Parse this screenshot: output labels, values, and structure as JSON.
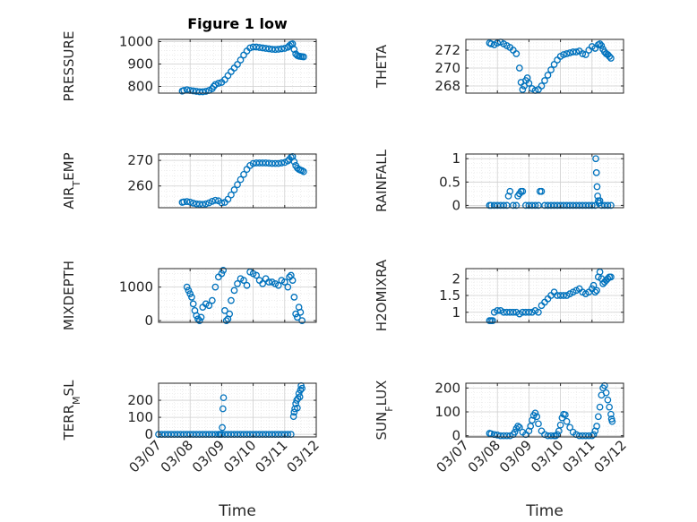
{
  "figure": {
    "title": "Figure 1 low",
    "xlabel": "Time"
  },
  "colors": {
    "marker": "#0072BD",
    "grid_major": "#cfcfcf",
    "grid_minor": "#e6e6e6",
    "axis": "#262626",
    "text": "#262626"
  },
  "x_ticks": [
    "03/07",
    "03/08",
    "03/09",
    "03/10",
    "03/11",
    "03/12"
  ],
  "chart_data": [
    {
      "type": "scatter",
      "ylabel": "PRESSURE",
      "ylim": [
        770,
        1010
      ],
      "yticks": [
        800,
        900,
        1000
      ],
      "ytick_labels": [
        "800",
        "900",
        "1000"
      ],
      "series": [
        {
          "x": [
            7.75,
            7.8,
            7.9,
            8.0,
            8.1,
            8.2,
            8.3,
            8.4,
            8.5,
            8.6,
            8.7,
            8.75,
            8.8,
            8.9,
            9.0,
            9.1,
            9.2,
            9.3,
            9.4,
            9.5,
            9.6,
            9.7,
            9.8,
            9.9,
            10.0,
            10.1,
            10.2,
            10.3,
            10.4,
            10.5,
            10.6,
            10.7,
            10.8,
            10.9,
            11.0,
            11.1,
            11.15,
            11.2,
            11.25,
            11.3,
            11.35,
            11.4,
            11.45,
            11.5,
            11.55,
            11.6
          ],
          "y": [
            779,
            782,
            785,
            782,
            780,
            778,
            776,
            776,
            778,
            782,
            790,
            800,
            808,
            814,
            818,
            830,
            848,
            866,
            882,
            898,
            918,
            940,
            958,
            972,
            976,
            976,
            974,
            972,
            970,
            968,
            966,
            965,
            966,
            968,
            970,
            975,
            982,
            988,
            990,
            965,
            945,
            938,
            935,
            934,
            933,
            932
          ]
        }
      ]
    },
    {
      "type": "scatter",
      "ylabel": "THETA",
      "ylim": [
        267.2,
        273.2
      ],
      "yticks": [
        268,
        270,
        272
      ],
      "ytick_labels": [
        "268",
        "270",
        "272"
      ],
      "series": [
        {
          "x": [
            7.75,
            7.8,
            7.9,
            8.0,
            8.1,
            8.2,
            8.3,
            8.4,
            8.5,
            8.6,
            8.7,
            8.75,
            8.8,
            8.85,
            8.9,
            8.95,
            9.0,
            9.1,
            9.2,
            9.3,
            9.4,
            9.5,
            9.6,
            9.7,
            9.8,
            9.9,
            10.0,
            10.1,
            10.2,
            10.3,
            10.4,
            10.5,
            10.6,
            10.7,
            10.8,
            10.9,
            11.0,
            11.1,
            11.2,
            11.25,
            11.3,
            11.35,
            11.4,
            11.45,
            11.5,
            11.55,
            11.6
          ],
          "y": [
            272.8,
            272.7,
            272.6,
            272.8,
            272.9,
            272.7,
            272.5,
            272.3,
            272.0,
            271.6,
            270.0,
            268.4,
            267.6,
            268.0,
            268.6,
            268.9,
            268.3,
            267.7,
            267.5,
            267.6,
            268.0,
            268.6,
            269.2,
            269.8,
            270.4,
            270.9,
            271.3,
            271.5,
            271.6,
            271.7,
            271.8,
            271.8,
            271.9,
            271.6,
            271.5,
            272.0,
            272.4,
            272.2,
            272.6,
            272.7,
            272.5,
            272.1,
            271.8,
            271.6,
            271.5,
            271.3,
            271.1
          ]
        }
      ]
    },
    {
      "type": "scatter",
      "ylabel": "AIR_TEMP",
      "ylim": [
        251.5,
        272.5
      ],
      "yticks": [
        260,
        270
      ],
      "ytick_labels": [
        "260",
        "270"
      ],
      "series": [
        {
          "x": [
            7.75,
            7.8,
            7.9,
            8.0,
            8.1,
            8.2,
            8.3,
            8.4,
            8.5,
            8.6,
            8.7,
            8.8,
            8.9,
            9.0,
            9.1,
            9.2,
            9.3,
            9.4,
            9.5,
            9.6,
            9.7,
            9.8,
            9.9,
            10.0,
            10.1,
            10.2,
            10.3,
            10.4,
            10.5,
            10.6,
            10.7,
            10.8,
            10.9,
            11.0,
            11.1,
            11.15,
            11.2,
            11.25,
            11.3,
            11.35,
            11.4,
            11.45,
            11.5,
            11.55,
            11.6
          ],
          "y": [
            253.6,
            253.8,
            253.9,
            253.7,
            253.3,
            253.0,
            252.9,
            252.8,
            253.0,
            253.4,
            254.0,
            254.4,
            254.2,
            253.4,
            253.6,
            254.8,
            256.5,
            258.5,
            260.5,
            262.5,
            264.5,
            266.5,
            268.0,
            268.8,
            269.0,
            269.0,
            269.0,
            269.0,
            268.9,
            268.8,
            268.8,
            268.8,
            269.0,
            269.2,
            269.8,
            270.4,
            271.2,
            271.5,
            269.5,
            268.0,
            267.0,
            266.5,
            266.2,
            266.0,
            265.6
          ]
        }
      ]
    },
    {
      "type": "scatter",
      "ylabel": "RAINFALL",
      "ylim": [
        -0.05,
        1.1
      ],
      "yticks": [
        0,
        0.5,
        1
      ],
      "ytick_labels": [
        "0",
        "0.5",
        "1"
      ],
      "series": [
        {
          "x": [
            7.75,
            7.8,
            7.9,
            8.0,
            8.1,
            8.2,
            8.3,
            8.35,
            8.4,
            8.5,
            8.6,
            8.65,
            8.7,
            8.75,
            8.8,
            8.9,
            9.0,
            9.1,
            9.2,
            9.3,
            9.35,
            9.4,
            9.5,
            9.6,
            9.7,
            9.8,
            9.9,
            10.0,
            10.1,
            10.2,
            10.3,
            10.4,
            10.5,
            10.6,
            10.7,
            10.8,
            10.9,
            11.0,
            11.1,
            11.12,
            11.14,
            11.16,
            11.18,
            11.2,
            11.22,
            11.25,
            11.3,
            11.4,
            11.5,
            11.6
          ],
          "y": [
            0,
            0,
            0,
            0,
            0,
            0,
            0,
            0.2,
            0.3,
            0,
            0,
            0.2,
            0.25,
            0.3,
            0.3,
            0,
            0,
            0,
            0,
            0,
            0.3,
            0.3,
            0,
            0,
            0,
            0,
            0,
            0,
            0,
            0,
            0,
            0,
            0,
            0,
            0,
            0,
            0,
            0,
            0,
            1.0,
            0.7,
            0.4,
            0.2,
            0.1,
            0.05,
            0.1,
            0,
            0,
            0,
            0
          ]
        }
      ]
    },
    {
      "type": "scatter",
      "ylabel": "MIXDEPTH",
      "ylim": [
        -50,
        1550
      ],
      "yticks": [
        0,
        1000
      ],
      "ytick_labels": [
        "0",
        "1000"
      ],
      "series": [
        {
          "x": [
            7.9,
            7.95,
            8.0,
            8.05,
            8.1,
            8.15,
            8.2,
            8.25,
            8.3,
            8.35,
            8.4,
            8.5,
            8.6,
            8.7,
            8.8,
            8.9,
            9.0,
            9.05,
            9.1,
            9.15,
            9.2,
            9.25,
            9.3,
            9.4,
            9.5,
            9.6,
            9.7,
            9.8,
            9.9,
            10.0,
            10.1,
            10.2,
            10.3,
            10.4,
            10.5,
            10.6,
            10.7,
            10.8,
            10.9,
            11.0,
            11.1,
            11.15,
            11.2,
            11.25,
            11.3,
            11.35,
            11.4,
            11.45,
            11.5,
            11.55
          ],
          "y": [
            1000,
            900,
            800,
            700,
            500,
            300,
            150,
            50,
            0,
            100,
            400,
            500,
            450,
            600,
            1000,
            1300,
            1400,
            1500,
            300,
            0,
            50,
            200,
            600,
            900,
            1100,
            1250,
            1200,
            1050,
            1450,
            1400,
            1350,
            1200,
            1100,
            1250,
            1150,
            1150,
            1100,
            1050,
            1200,
            1150,
            1000,
            1300,
            1350,
            1200,
            700,
            200,
            100,
            400,
            250,
            0
          ]
        }
      ]
    },
    {
      "type": "scatter",
      "ylabel": "H2OMIXRA",
      "ylim": [
        0.7,
        2.3
      ],
      "yticks": [
        1,
        1.5,
        2
      ],
      "ytick_labels": [
        "1",
        "1.5",
        "2"
      ],
      "series": [
        {
          "x": [
            7.75,
            7.8,
            7.85,
            7.9,
            8.0,
            8.1,
            8.2,
            8.3,
            8.4,
            8.5,
            8.6,
            8.7,
            8.8,
            8.9,
            9.0,
            9.1,
            9.2,
            9.3,
            9.4,
            9.5,
            9.6,
            9.7,
            9.8,
            9.9,
            10.0,
            10.1,
            10.2,
            10.3,
            10.4,
            10.5,
            10.6,
            10.7,
            10.8,
            10.9,
            11.0,
            11.05,
            11.1,
            11.15,
            11.2,
            11.25,
            11.3,
            11.35,
            11.4,
            11.45,
            11.5,
            11.55,
            11.6
          ],
          "y": [
            0.75,
            0.75,
            0.75,
            1.0,
            1.05,
            1.05,
            1.0,
            1.0,
            1.0,
            1.0,
            1.0,
            0.95,
            1.0,
            1.0,
            1.0,
            1.0,
            1.05,
            1.0,
            1.2,
            1.3,
            1.4,
            1.5,
            1.6,
            1.5,
            1.5,
            1.5,
            1.5,
            1.55,
            1.6,
            1.65,
            1.7,
            1.6,
            1.55,
            1.6,
            1.7,
            1.8,
            1.6,
            1.65,
            2.05,
            2.2,
            2.0,
            1.85,
            1.9,
            1.95,
            2.0,
            2.05,
            2.05
          ]
        }
      ]
    },
    {
      "type": "scatter",
      "ylabel": "TERR_MSL",
      "ylim": [
        -15,
        300
      ],
      "yticks": [
        0,
        100,
        200
      ],
      "ytick_labels": [
        "0",
        "100",
        "200"
      ],
      "series": [
        {
          "x": [
            7.0,
            7.1,
            7.2,
            7.3,
            7.4,
            7.5,
            7.6,
            7.7,
            7.8,
            7.9,
            8.0,
            8.1,
            8.2,
            8.3,
            8.4,
            8.5,
            8.6,
            8.7,
            8.8,
            8.9,
            8.95,
            9.0,
            9.02,
            9.04,
            9.06,
            9.1,
            9.2,
            9.3,
            9.4,
            9.5,
            9.6,
            9.7,
            9.8,
            9.9,
            10.0,
            10.1,
            10.2,
            10.3,
            10.4,
            10.5,
            10.6,
            10.7,
            10.8,
            10.9,
            11.0,
            11.1,
            11.2,
            11.28,
            11.3,
            11.32,
            11.35,
            11.38,
            11.4,
            11.42,
            11.45,
            11.48,
            11.5,
            11.52,
            11.55
          ],
          "y": [
            0,
            0,
            0,
            0,
            0,
            0,
            0,
            0,
            0,
            0,
            0,
            0,
            0,
            0,
            0,
            0,
            0,
            0,
            0,
            0,
            0,
            0,
            40,
            150,
            215,
            0,
            0,
            0,
            0,
            0,
            0,
            0,
            0,
            0,
            0,
            0,
            0,
            0,
            0,
            0,
            0,
            0,
            0,
            0,
            0,
            0,
            0,
            105,
            130,
            150,
            180,
            200,
            155,
            210,
            240,
            220,
            260,
            285,
            270
          ]
        }
      ]
    },
    {
      "type": "scatter",
      "ylabel": "SUN_FLUX",
      "ylim": [
        -5,
        220
      ],
      "yticks": [
        0,
        100,
        200
      ],
      "ytick_labels": [
        "0",
        "100",
        "200"
      ],
      "series": [
        {
          "x": [
            7.75,
            7.8,
            7.9,
            8.0,
            8.1,
            8.2,
            8.3,
            8.4,
            8.5,
            8.55,
            8.6,
            8.65,
            8.7,
            8.8,
            8.9,
            9.0,
            9.05,
            9.1,
            9.15,
            9.2,
            9.25,
            9.3,
            9.4,
            9.5,
            9.6,
            9.7,
            9.8,
            9.85,
            9.9,
            9.95,
            10.0,
            10.05,
            10.1,
            10.15,
            10.2,
            10.3,
            10.4,
            10.5,
            10.6,
            10.7,
            10.8,
            10.9,
            11.0,
            11.05,
            11.1,
            11.15,
            11.2,
            11.25,
            11.3,
            11.35,
            11.4,
            11.45,
            11.5,
            11.55,
            11.6,
            11.62,
            11.64
          ],
          "y": [
            10,
            8,
            5,
            3,
            0,
            0,
            0,
            0,
            5,
            15,
            30,
            40,
            35,
            15,
            5,
            20,
            40,
            65,
            85,
            95,
            80,
            50,
            20,
            5,
            0,
            0,
            0,
            0,
            5,
            20,
            45,
            75,
            90,
            88,
            60,
            35,
            15,
            5,
            0,
            0,
            0,
            0,
            0,
            5,
            20,
            40,
            80,
            120,
            170,
            200,
            210,
            180,
            150,
            120,
            90,
            70,
            60
          ]
        }
      ]
    }
  ]
}
